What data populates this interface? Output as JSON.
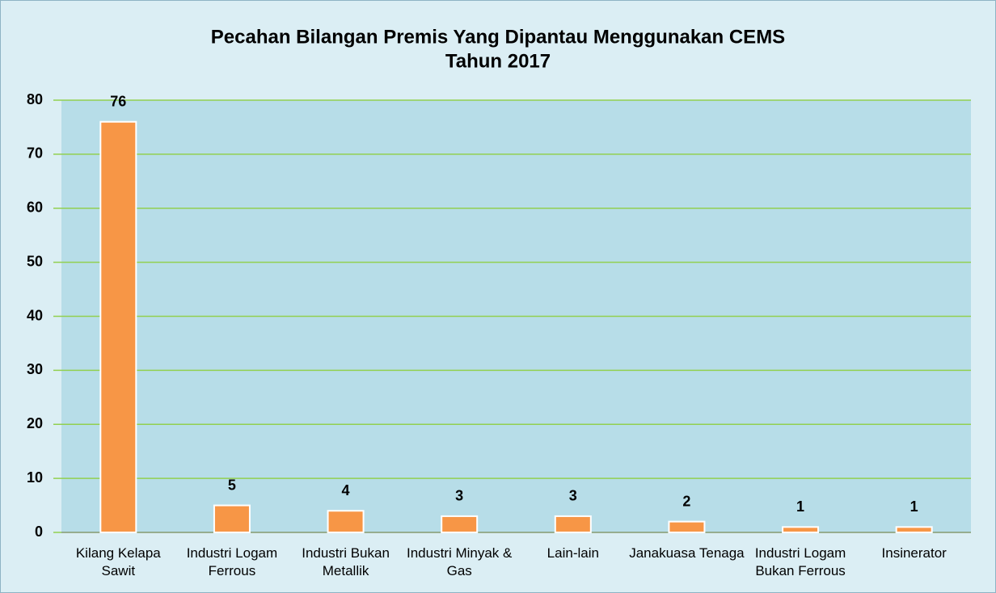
{
  "chart_data": {
    "type": "bar",
    "title": "Pecahan Bilangan Premis Yang Dipantau Menggunakan CEMS",
    "subtitle": "Tahun 2017",
    "categories": [
      "Kilang Kelapa Sawit",
      "Industri Logam Ferrous",
      "Industri Bukan Metallik",
      "Industri Minyak & Gas",
      "Lain-lain",
      "Janakuasa Tenaga",
      "Industri Logam Bukan Ferrous",
      "Insinerator"
    ],
    "values": [
      76,
      5,
      4,
      3,
      3,
      2,
      1,
      1
    ],
    "color": "#f79646",
    "ylim": [
      0,
      80
    ],
    "yticks": [
      0,
      10,
      20,
      30,
      40,
      50,
      60,
      70,
      80
    ],
    "grid": true
  }
}
